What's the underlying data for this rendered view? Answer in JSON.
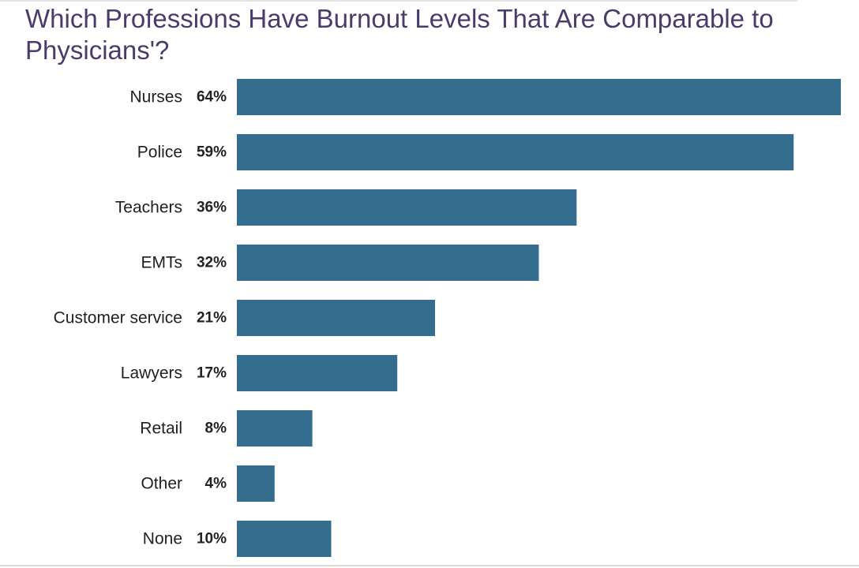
{
  "chart_data": {
    "type": "bar",
    "orientation": "horizontal",
    "title": "Which Professions Have Burnout Levels That Are Comparable to Physicians'?",
    "categories": [
      "Nurses",
      "Police",
      "Teachers",
      "EMTs",
      "Customer service",
      "Lawyers",
      "Retail",
      "Other",
      "None"
    ],
    "values": [
      64,
      59,
      36,
      32,
      21,
      17,
      8,
      4,
      10
    ],
    "value_labels": [
      "64%",
      "59%",
      "36%",
      "32%",
      "21%",
      "17%",
      "8%",
      "4%",
      "10%"
    ],
    "unit": "%",
    "xlim": [
      0,
      64
    ],
    "grid": false,
    "legend": "none",
    "bar_color": "#356d8f",
    "title_color": "#4a3b6b"
  }
}
